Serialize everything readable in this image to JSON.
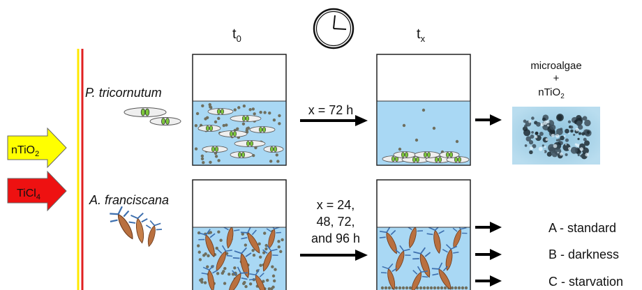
{
  "arrows": [
    {
      "label": "nTiO",
      "sub": "2",
      "color": "#ffff00"
    },
    {
      "label": "TiCl",
      "sub": "4",
      "color": "#ee1111"
    }
  ],
  "time_labels": [
    {
      "main": "t",
      "sub": "0"
    },
    {
      "main": "t",
      "sub": "x"
    }
  ],
  "clock_icon": "clock-icon",
  "organisms": {
    "alga_name": "P. tricornutum",
    "shrimp_name": "A. franciscana"
  },
  "exposure": {
    "algae_time": "x = 72 h",
    "shrimp_time_lines": [
      "x = 24,",
      "48, 72,",
      "and 96 h"
    ]
  },
  "result": {
    "line1": "microalgae",
    "line2": "+",
    "line3_main": "nTiO",
    "line3_sub": "2"
  },
  "conditions": [
    "A - standard",
    "B - darkness",
    "C - starvation"
  ],
  "colors": {
    "water": "#a9d8f4",
    "line_yellow": "#ffe800",
    "line_red": "#e02020",
    "particle": "#6f6f5e"
  }
}
